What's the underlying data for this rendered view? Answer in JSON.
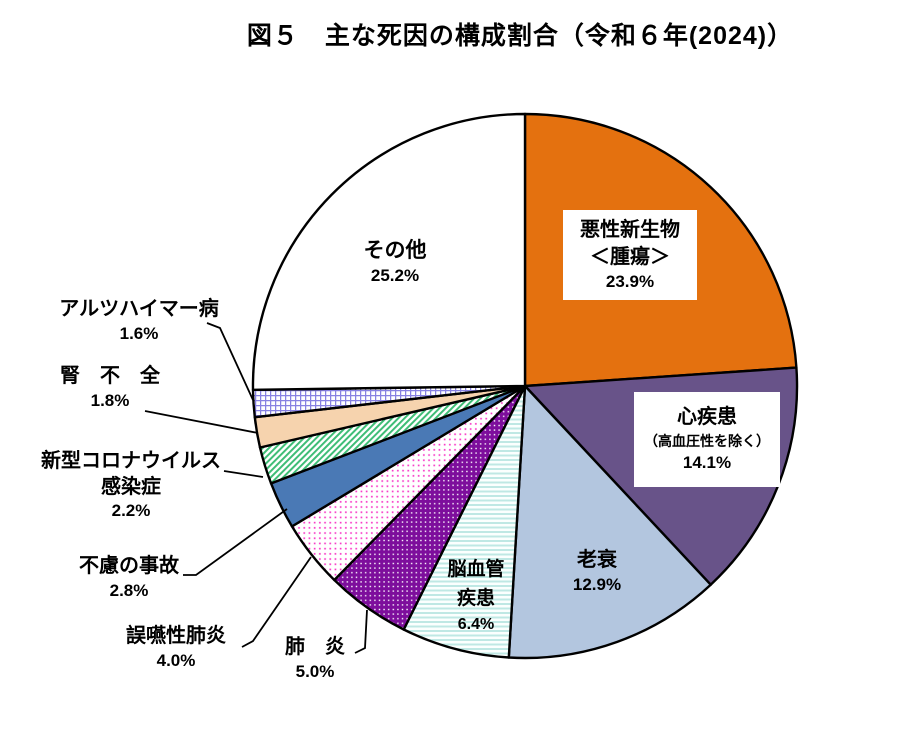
{
  "title": "図５　主な死因の構成割合（令和６年(2024)）",
  "chart_data": {
    "type": "pie",
    "title": "図５　主な死因の構成割合（令和６年(2024)）",
    "unit": "%",
    "start_angle": "top",
    "direction": "clockwise",
    "slices": [
      {
        "name": "malignant-neoplasms",
        "label": "悪性新生物＜腫瘍＞",
        "lines": [
          "悪性新生物",
          "＜腫瘍＞"
        ],
        "pct": "23.9%",
        "value": 23.9,
        "fill": {
          "type": "solid",
          "color": "#E4710F"
        }
      },
      {
        "name": "heart-disease",
        "label": "心疾患（高血圧性を除く）",
        "lines": [
          "心疾患",
          "（高血圧性を除く）"
        ],
        "pct": "14.1%",
        "value": 14.1,
        "fill": {
          "type": "solid",
          "color": "#685389"
        }
      },
      {
        "name": "senility",
        "label": "老衰",
        "lines": [
          "老衰"
        ],
        "pct": "12.9%",
        "value": 12.9,
        "fill": {
          "type": "solid",
          "color": "#B3C6DF"
        }
      },
      {
        "name": "cerebrovascular-disease",
        "label": "脳血管疾患",
        "lines": [
          "脳血管",
          "疾患"
        ],
        "pct": "6.4%",
        "value": 6.4,
        "fill": {
          "type": "pattern",
          "name": "cyan-stripes"
        }
      },
      {
        "name": "pneumonia",
        "label": "肺炎",
        "lines": [
          "肺　炎"
        ],
        "pct": "5.0%",
        "value": 5.0,
        "fill": {
          "type": "pattern",
          "name": "purple-dots"
        }
      },
      {
        "name": "aspiration-pneumonia",
        "label": "誤嚥性肺炎",
        "lines": [
          "誤嚥性肺炎"
        ],
        "pct": "4.0%",
        "value": 4.0,
        "fill": {
          "type": "pattern",
          "name": "pink-dots"
        }
      },
      {
        "name": "accidents",
        "label": "不慮の事故",
        "lines": [
          "不慮の事故"
        ],
        "pct": "2.8%",
        "value": 2.8,
        "fill": {
          "type": "solid",
          "color": "#4A79B5"
        }
      },
      {
        "name": "covid-19",
        "label": "新型コロナウイルス感染症",
        "lines": [
          "新型コロナウイルス",
          "感染症"
        ],
        "pct": "2.2%",
        "value": 2.2,
        "fill": {
          "type": "pattern",
          "name": "green-stripes"
        }
      },
      {
        "name": "kidney-failure",
        "label": "腎不全",
        "lines": [
          "腎　不　全"
        ],
        "pct": "1.8%",
        "value": 1.8,
        "fill": {
          "type": "solid",
          "color": "#F6D3AE"
        }
      },
      {
        "name": "alzheimers-disease",
        "label": "アルツハイマー病",
        "lines": [
          "アルツハイマー病"
        ],
        "pct": "1.6%",
        "value": 1.6,
        "fill": {
          "type": "pattern",
          "name": "blue-grid"
        }
      },
      {
        "name": "others",
        "label": "その他",
        "lines": [
          "その他"
        ],
        "pct": "25.2%",
        "value": 25.2,
        "fill": {
          "type": "solid",
          "color": "#FFFFFF"
        }
      }
    ],
    "colors": {
      "outline": "#000000",
      "orange": "#E4710F",
      "dark_purple": "#685389",
      "light_blue": "#B3C6DF",
      "cyan_stripe": "#BFE8E4",
      "dot_purple": "#7D0E9C",
      "dot_pink": "#F83CC8",
      "steel_blue": "#4A79B5",
      "stripe_green": "#3EBD76",
      "peach": "#F6D3AE",
      "grid_blue": "#8781E2"
    }
  }
}
